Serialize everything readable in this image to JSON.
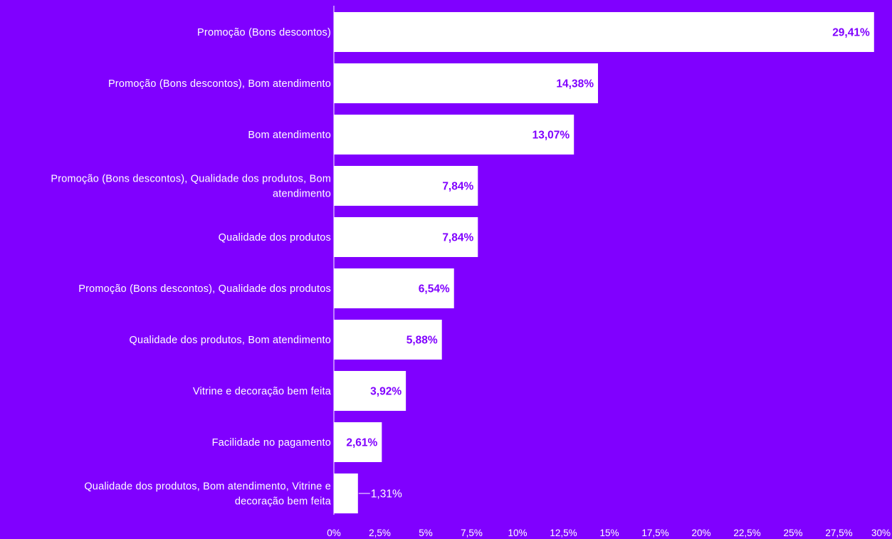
{
  "chart_data": {
    "type": "bar",
    "orientation": "horizontal",
    "categories": [
      "Promoção (Bons descontos)",
      "Promoção (Bons descontos), Bom atendimento",
      "Bom atendimento",
      "Promoção (Bons descontos), Qualidade dos produtos, Bom atendimento",
      "Qualidade dos produtos",
      "Promoção (Bons descontos), Qualidade dos produtos",
      "Qualidade dos produtos, Bom atendimento",
      "Vitrine e decoração bem feita",
      "Facilidade no pagamento",
      "Qualidade dos produtos, Bom atendimento, Vitrine e decoração bem feita"
    ],
    "category_lines": [
      [
        "Promoção (Bons descontos)"
      ],
      [
        "Promoção (Bons descontos), Bom atendimento"
      ],
      [
        "Bom atendimento"
      ],
      [
        "Promoção (Bons descontos), Qualidade dos produtos, Bom",
        "atendimento"
      ],
      [
        "Qualidade dos produtos"
      ],
      [
        "Promoção (Bons descontos), Qualidade dos produtos"
      ],
      [
        "Qualidade dos produtos, Bom atendimento"
      ],
      [
        "Vitrine e decoração bem feita"
      ],
      [
        "Facilidade no pagamento"
      ],
      [
        "Qualidade dos produtos, Bom atendimento, Vitrine e",
        "decoração bem feita"
      ]
    ],
    "values": [
      29.41,
      14.38,
      13.07,
      7.84,
      7.84,
      6.54,
      5.88,
      3.92,
      2.61,
      1.31
    ],
    "value_labels": [
      "29,41%",
      "14,38%",
      "13,07%",
      "7,84%",
      "7,84%",
      "6,54%",
      "5,88%",
      "3,92%",
      "2,61%",
      "1,31%"
    ],
    "xlim": [
      0,
      30
    ],
    "x_ticks": [
      0,
      2.5,
      5,
      7.5,
      10,
      12.5,
      15,
      17.5,
      20,
      22.5,
      25,
      27.5,
      30
    ],
    "x_tick_labels": [
      "0%",
      "2,5%",
      "5%",
      "7,5%",
      "10%",
      "12,5%",
      "15%",
      "17,5%",
      "20%",
      "22,5%",
      "25%",
      "27,5%",
      "30%"
    ],
    "title": "",
    "xlabel": "",
    "ylabel": "",
    "grid": false,
    "legend": "none"
  },
  "colors": {
    "background": "#8000FF",
    "bar_fill": "#FFFFFF",
    "bar_value_text": "#8000FF",
    "text": "#FFFFFF",
    "axis_line": "#FFFFFF"
  }
}
